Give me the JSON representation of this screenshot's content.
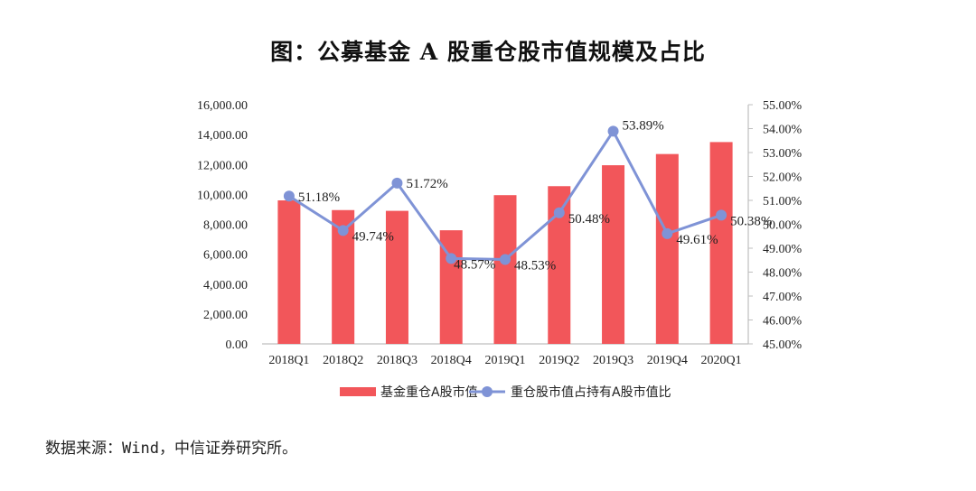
{
  "title": "图：公募基金 A 股重仓股市值规模及占比",
  "source": "数据来源：Wind，中信证券研究所。",
  "colors": {
    "bar": "#f2565a",
    "line": "#7f93d6",
    "axis": "#bfbfbf"
  },
  "chart_data": {
    "type": "bar",
    "categories": [
      "2018Q1",
      "2018Q2",
      "2018Q3",
      "2018Q4",
      "2019Q1",
      "2019Q2",
      "2019Q3",
      "2019Q4",
      "2020Q1"
    ],
    "series": [
      {
        "name": "基金重仓A股市值",
        "type": "bar",
        "axis": "left",
        "values": [
          9600,
          8950,
          8900,
          7600,
          9950,
          10550,
          11950,
          12700,
          13500
        ]
      },
      {
        "name": "重仓股市值占持有A股市值比",
        "type": "line",
        "axis": "right",
        "values": [
          51.18,
          49.74,
          51.72,
          48.57,
          48.53,
          50.48,
          53.89,
          49.61,
          50.38
        ],
        "labels": [
          "51.18%",
          "49.74%",
          "51.72%",
          "48.57%",
          "48.53%",
          "50.48%",
          "53.89%",
          "49.61%",
          "50.38%"
        ]
      }
    ],
    "y_left": {
      "min": 0,
      "max": 16000,
      "step": 2000,
      "ticks": [
        "0.00",
        "2,000.00",
        "4,000.00",
        "6,000.00",
        "8,000.00",
        "10,000.00",
        "12,000.00",
        "14,000.00",
        "16,000.00"
      ]
    },
    "y_right": {
      "min": 45,
      "max": 55,
      "step": 1,
      "ticks": [
        "45.00%",
        "46.00%",
        "47.00%",
        "48.00%",
        "49.00%",
        "50.00%",
        "51.00%",
        "52.00%",
        "53.00%",
        "54.00%",
        "55.00%"
      ]
    },
    "legend_position": "bottom",
    "grid": false
  }
}
